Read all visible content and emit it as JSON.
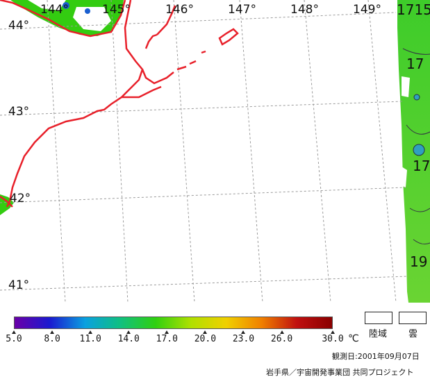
{
  "map": {
    "lat_labels": [
      "44°",
      "43°",
      "42°",
      "41°"
    ],
    "lon_labels": [
      "144°",
      "145°",
      "146°",
      "147°",
      "148°",
      "149°"
    ],
    "contour_labels": [
      "1715",
      "17",
      "17",
      "19"
    ],
    "colors": {
      "coastline": "#e8202a",
      "land_green": "#33cc11",
      "sea_green": "#5fd02b",
      "grid": "#9a9a9a"
    }
  },
  "colorbar": {
    "tick_labels": [
      "5.0",
      "8.0",
      "11.0",
      "14.0",
      "17.0",
      "20.0",
      "23.0",
      "26.0",
      "30.0"
    ],
    "unit": "℃",
    "min": 5.0,
    "max": 30.0,
    "stops": [
      "#6a00a8",
      "#1a1ad0",
      "#0aa0e0",
      "#10c080",
      "#30d010",
      "#b0e000",
      "#f0d000",
      "#f08000",
      "#c01010",
      "#8a0000"
    ]
  },
  "legend": {
    "land_label": "陸域",
    "cloud_label": "雲"
  },
  "footer": {
    "observation_date": "観測日:2001年09月07日",
    "credit": "岩手県／宇宙開発事業団 共同プロジェクト"
  }
}
